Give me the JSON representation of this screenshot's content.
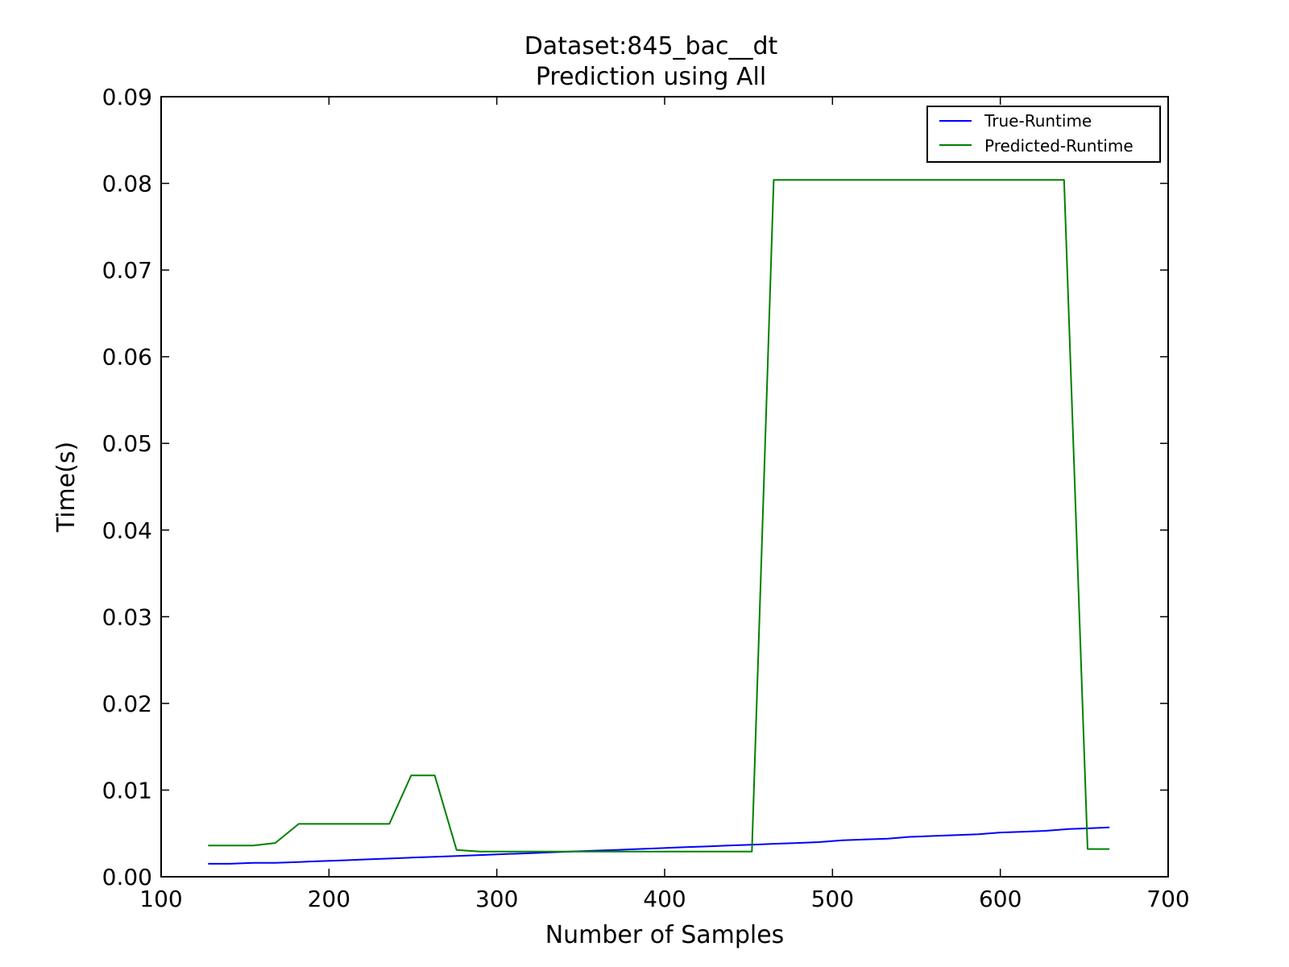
{
  "chart_data": {
    "type": "line",
    "title": "Dataset:845_bac__dt",
    "subtitle": "Prediction using All",
    "xlabel": "Number of Samples",
    "ylabel": "Time(s)",
    "xlim": [
      100,
      700
    ],
    "ylim": [
      0,
      0.09
    ],
    "x_ticks": [
      100,
      200,
      300,
      400,
      500,
      600,
      700
    ],
    "x_tick_labels": [
      "100",
      "200",
      "300",
      "400",
      "500",
      "600",
      "700"
    ],
    "y_ticks": [
      0,
      0.01,
      0.02,
      0.03,
      0.04,
      0.05,
      0.06,
      0.07,
      0.08,
      0.09
    ],
    "y_tick_labels": [
      "0.00",
      "0.01",
      "0.02",
      "0.03",
      "0.04",
      "0.05",
      "0.06",
      "0.07",
      "0.08",
      "0.09"
    ],
    "grid": false,
    "legend_position": "top-right",
    "series": [
      {
        "name": "True-Runtime",
        "color": "#0000ff",
        "x": [
          128,
          141,
          155,
          168,
          182,
          195,
          209,
          222,
          236,
          249,
          263,
          276,
          290,
          303,
          317,
          330,
          344,
          357,
          371,
          384,
          398,
          411,
          425,
          438,
          452,
          465,
          479,
          492,
          506,
          519,
          533,
          546,
          560,
          573,
          587,
          600,
          614,
          627,
          641,
          654,
          665
        ],
        "y": [
          0.0015,
          0.0015,
          0.0016,
          0.0016,
          0.0017,
          0.0018,
          0.0019,
          0.002,
          0.0021,
          0.0022,
          0.0023,
          0.0024,
          0.0025,
          0.0026,
          0.0027,
          0.0028,
          0.0029,
          0.003,
          0.0031,
          0.0032,
          0.0033,
          0.0034,
          0.0035,
          0.0036,
          0.0037,
          0.0038,
          0.0039,
          0.004,
          0.0042,
          0.0043,
          0.0044,
          0.0046,
          0.0047,
          0.0048,
          0.0049,
          0.0051,
          0.0052,
          0.0053,
          0.0055,
          0.0056,
          0.0057
        ]
      },
      {
        "name": "Predicted-Runtime",
        "color": "#008000",
        "x": [
          128,
          155,
          168,
          182,
          236,
          249,
          263,
          276,
          290,
          452,
          465,
          638,
          652,
          665
        ],
        "y": [
          0.0036,
          0.0036,
          0.0039,
          0.0061,
          0.0061,
          0.0117,
          0.0117,
          0.0031,
          0.0029,
          0.0029,
          0.0804,
          0.0804,
          0.0032,
          0.0032
        ]
      }
    ]
  }
}
